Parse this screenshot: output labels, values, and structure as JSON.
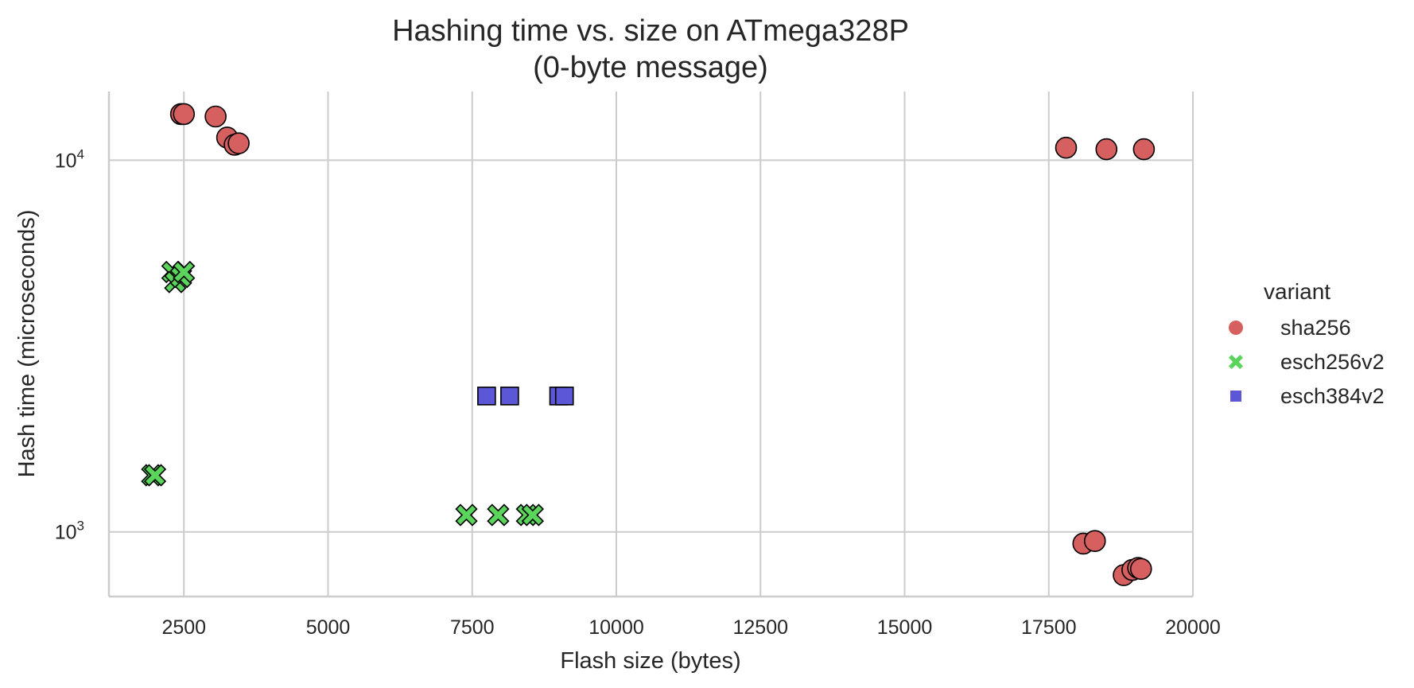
{
  "chart_data": {
    "type": "scatter",
    "title_line1": "Hashing time vs. size on ATmega328P",
    "title_line2": "(0-byte message)",
    "xlabel": "Flash size (bytes)",
    "ylabel": "Hash time (microseconds)",
    "xlim": [
      1200,
      20000
    ],
    "ylim": [
      670,
      15300
    ],
    "yscale": "log",
    "grid": true,
    "legend_position": "right",
    "legend_title": "variant",
    "x_ticks": [
      2500,
      5000,
      7500,
      10000,
      12500,
      15000,
      17500,
      20000
    ],
    "x_tick_labels": [
      "2500",
      "5000",
      "7500",
      "10000",
      "12500",
      "15000",
      "17500",
      "20000"
    ],
    "y_ticks": [
      1000,
      10000
    ],
    "y_tick_labels": [
      {
        "base": "10",
        "exp": "3"
      },
      {
        "base": "10",
        "exp": "4"
      }
    ],
    "series": [
      {
        "name": "sha256",
        "marker": "circle",
        "color": "#d65f5f",
        "points": [
          {
            "x": 2450,
            "y": 13300
          },
          {
            "x": 2500,
            "y": 13300
          },
          {
            "x": 3050,
            "y": 13100
          },
          {
            "x": 3250,
            "y": 11500
          },
          {
            "x": 3380,
            "y": 11000
          },
          {
            "x": 3450,
            "y": 11100
          },
          {
            "x": 17800,
            "y": 10800
          },
          {
            "x": 18500,
            "y": 10700
          },
          {
            "x": 19150,
            "y": 10700
          },
          {
            "x": 18100,
            "y": 930
          },
          {
            "x": 18300,
            "y": 945
          },
          {
            "x": 18800,
            "y": 765
          },
          {
            "x": 18950,
            "y": 790
          },
          {
            "x": 19050,
            "y": 800
          },
          {
            "x": 19100,
            "y": 795
          }
        ]
      },
      {
        "name": "esch256v2",
        "marker": "x",
        "color": "#5ad45a",
        "points": [
          {
            "x": 2300,
            "y": 5000
          },
          {
            "x": 2350,
            "y": 4700
          },
          {
            "x": 2450,
            "y": 4850
          },
          {
            "x": 2500,
            "y": 5000
          },
          {
            "x": 1950,
            "y": 1420
          },
          {
            "x": 2000,
            "y": 1420
          },
          {
            "x": 7400,
            "y": 1110
          },
          {
            "x": 7950,
            "y": 1110
          },
          {
            "x": 8450,
            "y": 1110
          },
          {
            "x": 8550,
            "y": 1110
          }
        ]
      },
      {
        "name": "esch384v2",
        "marker": "square",
        "color": "#5b57d6",
        "points": [
          {
            "x": 7750,
            "y": 2320
          },
          {
            "x": 8150,
            "y": 2320
          },
          {
            "x": 9000,
            "y": 2320
          },
          {
            "x": 9100,
            "y": 2320
          }
        ]
      }
    ]
  }
}
